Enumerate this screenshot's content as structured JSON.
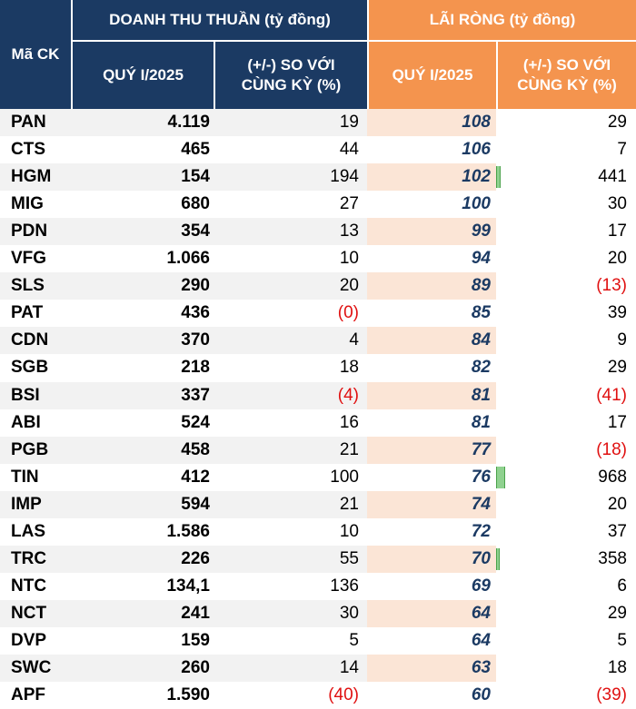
{
  "header": {
    "ticker": "Mã CK",
    "revenue_group": "DOANH THU THUẦN (tỷ đồng)",
    "profit_group": "LÃI RÒNG (tỷ đồng)",
    "revenue_q": "QUÝ I/2025",
    "revenue_change_line1": "(+/-) SO VỚI",
    "revenue_change_line2": "CÙNG KỲ (%)",
    "profit_q": "QUÝ I/2025",
    "profit_change_line1": "(+/-) SO VỚI",
    "profit_change_line2": "CÙNG KỲ (%)"
  },
  "colors": {
    "header_navy": "#1b3a63",
    "header_orange": "#f4944e",
    "row_stripe_left": "#f2f2f2",
    "row_stripe_right": "#fbe5d6",
    "negative": "#e01010",
    "databar": "#8fd18f"
  },
  "rows": [
    {
      "ticker": "PAN",
      "revenue": "4.119",
      "rev_change": "19",
      "rev_neg": false,
      "profit": "108",
      "profit_change": "29",
      "profit_change_value": 29,
      "profit_neg": false
    },
    {
      "ticker": "CTS",
      "revenue": "465",
      "rev_change": "44",
      "rev_neg": false,
      "profit": "106",
      "profit_change": "7",
      "profit_change_value": 7,
      "profit_neg": false
    },
    {
      "ticker": "HGM",
      "revenue": "154",
      "rev_change": "194",
      "rev_neg": false,
      "profit": "102",
      "profit_change": "441",
      "profit_change_value": 441,
      "profit_neg": false
    },
    {
      "ticker": "MIG",
      "revenue": "680",
      "rev_change": "27",
      "rev_neg": false,
      "profit": "100",
      "profit_change": "30",
      "profit_change_value": 30,
      "profit_neg": false
    },
    {
      "ticker": "PDN",
      "revenue": "354",
      "rev_change": "13",
      "rev_neg": false,
      "profit": "99",
      "profit_change": "17",
      "profit_change_value": 17,
      "profit_neg": false
    },
    {
      "ticker": "VFG",
      "revenue": "1.066",
      "rev_change": "10",
      "rev_neg": false,
      "profit": "94",
      "profit_change": "20",
      "profit_change_value": 20,
      "profit_neg": false
    },
    {
      "ticker": "SLS",
      "revenue": "290",
      "rev_change": "20",
      "rev_neg": false,
      "profit": "89",
      "profit_change": "(13)",
      "profit_change_value": -13,
      "profit_neg": true
    },
    {
      "ticker": "PAT",
      "revenue": "436",
      "rev_change": "(0)",
      "rev_neg": true,
      "profit": "85",
      "profit_change": "39",
      "profit_change_value": 39,
      "profit_neg": false
    },
    {
      "ticker": "CDN",
      "revenue": "370",
      "rev_change": "4",
      "rev_neg": false,
      "profit": "84",
      "profit_change": "9",
      "profit_change_value": 9,
      "profit_neg": false
    },
    {
      "ticker": "SGB",
      "revenue": "218",
      "rev_change": "18",
      "rev_neg": false,
      "profit": "82",
      "profit_change": "29",
      "profit_change_value": 29,
      "profit_neg": false
    },
    {
      "ticker": "BSI",
      "revenue": "337",
      "rev_change": "(4)",
      "rev_neg": true,
      "profit": "81",
      "profit_change": "(41)",
      "profit_change_value": -41,
      "profit_neg": true
    },
    {
      "ticker": "ABI",
      "revenue": "524",
      "rev_change": "16",
      "rev_neg": false,
      "profit": "81",
      "profit_change": "17",
      "profit_change_value": 17,
      "profit_neg": false
    },
    {
      "ticker": "PGB",
      "revenue": "458",
      "rev_change": "21",
      "rev_neg": false,
      "profit": "77",
      "profit_change": "(18)",
      "profit_change_value": -18,
      "profit_neg": true
    },
    {
      "ticker": "TIN",
      "revenue": "412",
      "rev_change": "100",
      "rev_neg": false,
      "profit": "76",
      "profit_change": "968",
      "profit_change_value": 968,
      "profit_neg": false
    },
    {
      "ticker": "IMP",
      "revenue": "594",
      "rev_change": "21",
      "rev_neg": false,
      "profit": "74",
      "profit_change": "20",
      "profit_change_value": 20,
      "profit_neg": false
    },
    {
      "ticker": "LAS",
      "revenue": "1.586",
      "rev_change": "10",
      "rev_neg": false,
      "profit": "72",
      "profit_change": "37",
      "profit_change_value": 37,
      "profit_neg": false
    },
    {
      "ticker": "TRC",
      "revenue": "226",
      "rev_change": "55",
      "rev_neg": false,
      "profit": "70",
      "profit_change": "358",
      "profit_change_value": 358,
      "profit_neg": false
    },
    {
      "ticker": "NTC",
      "revenue": "134,1",
      "rev_change": "136",
      "rev_neg": false,
      "profit": "69",
      "profit_change": "6",
      "profit_change_value": 6,
      "profit_neg": false
    },
    {
      "ticker": "NCT",
      "revenue": "241",
      "rev_change": "30",
      "rev_neg": false,
      "profit": "64",
      "profit_change": "29",
      "profit_change_value": 29,
      "profit_neg": false
    },
    {
      "ticker": "DVP",
      "revenue": "159",
      "rev_change": "5",
      "rev_neg": false,
      "profit": "64",
      "profit_change": "5",
      "profit_change_value": 5,
      "profit_neg": false
    },
    {
      "ticker": "SWC",
      "revenue": "260",
      "rev_change": "14",
      "rev_neg": false,
      "profit": "63",
      "profit_change": "18",
      "profit_change_value": 18,
      "profit_neg": false
    },
    {
      "ticker": "APF",
      "revenue": "1.590",
      "rev_change": "(40)",
      "rev_neg": true,
      "profit": "60",
      "profit_change": "(39)",
      "profit_change_value": -39,
      "profit_neg": true
    }
  ]
}
